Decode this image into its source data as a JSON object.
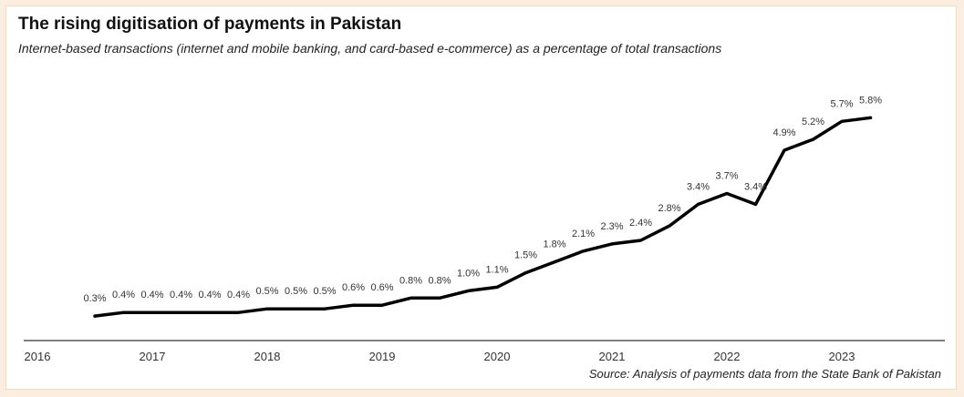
{
  "title": "The rising digitisation of payments in Pakistan",
  "subtitle": "Internet-based transactions (internet and mobile banking, and card-based e-commerce) as a percentage of total transactions",
  "source": "Source: Analysis of payments data from the State Bank of Pakistan",
  "colors": {
    "background": "#fbeee0",
    "card": "#ffffff",
    "line": "#000000",
    "text": "#333333"
  },
  "chart_data": {
    "type": "line",
    "title": "The rising digitisation of payments in Pakistan",
    "xlabel": "",
    "ylabel": "",
    "x_ticks": [
      "2016",
      "2017",
      "2018",
      "2019",
      "2020",
      "2021",
      "2022",
      "2023"
    ],
    "xlim": [
      2016,
      2024
    ],
    "ylim": [
      0,
      6.2
    ],
    "grid": false,
    "legend": "none",
    "series": [
      {
        "x": [
          2016.5,
          2016.75,
          2017.0,
          2017.25,
          2017.5,
          2017.75,
          2018.0,
          2018.25,
          2018.5,
          2018.75,
          2019.0,
          2019.25,
          2019.5,
          2019.75,
          2020.0,
          2020.25,
          2020.5,
          2020.75,
          2021.0,
          2021.25,
          2021.5,
          2021.75,
          2022.0,
          2022.25,
          2022.5,
          2022.75,
          2023.0,
          2023.25
        ],
        "values": [
          0.3,
          0.4,
          0.4,
          0.4,
          0.4,
          0.4,
          0.5,
          0.5,
          0.5,
          0.6,
          0.6,
          0.8,
          0.8,
          1.0,
          1.1,
          1.5,
          1.8,
          2.1,
          2.3,
          2.4,
          2.8,
          3.4,
          3.7,
          3.4,
          4.9,
          5.2,
          5.7,
          5.8
        ],
        "labels": [
          "0.3%",
          "0.4%",
          "0.4%",
          "0.4%",
          "0.4%",
          "0.4%",
          "0.5%",
          "0.5%",
          "0.5%",
          "0.6%",
          "0.6%",
          "0.8%",
          "0.8%",
          "1.0%",
          "1.1%",
          "1.5%",
          "1.8%",
          "2.1%",
          "2.3%",
          "2.4%",
          "2.8%",
          "3.4%",
          "3.7%",
          "3.4%",
          "4.9%",
          "5.2%",
          "5.7%",
          "5.8%"
        ]
      }
    ]
  }
}
